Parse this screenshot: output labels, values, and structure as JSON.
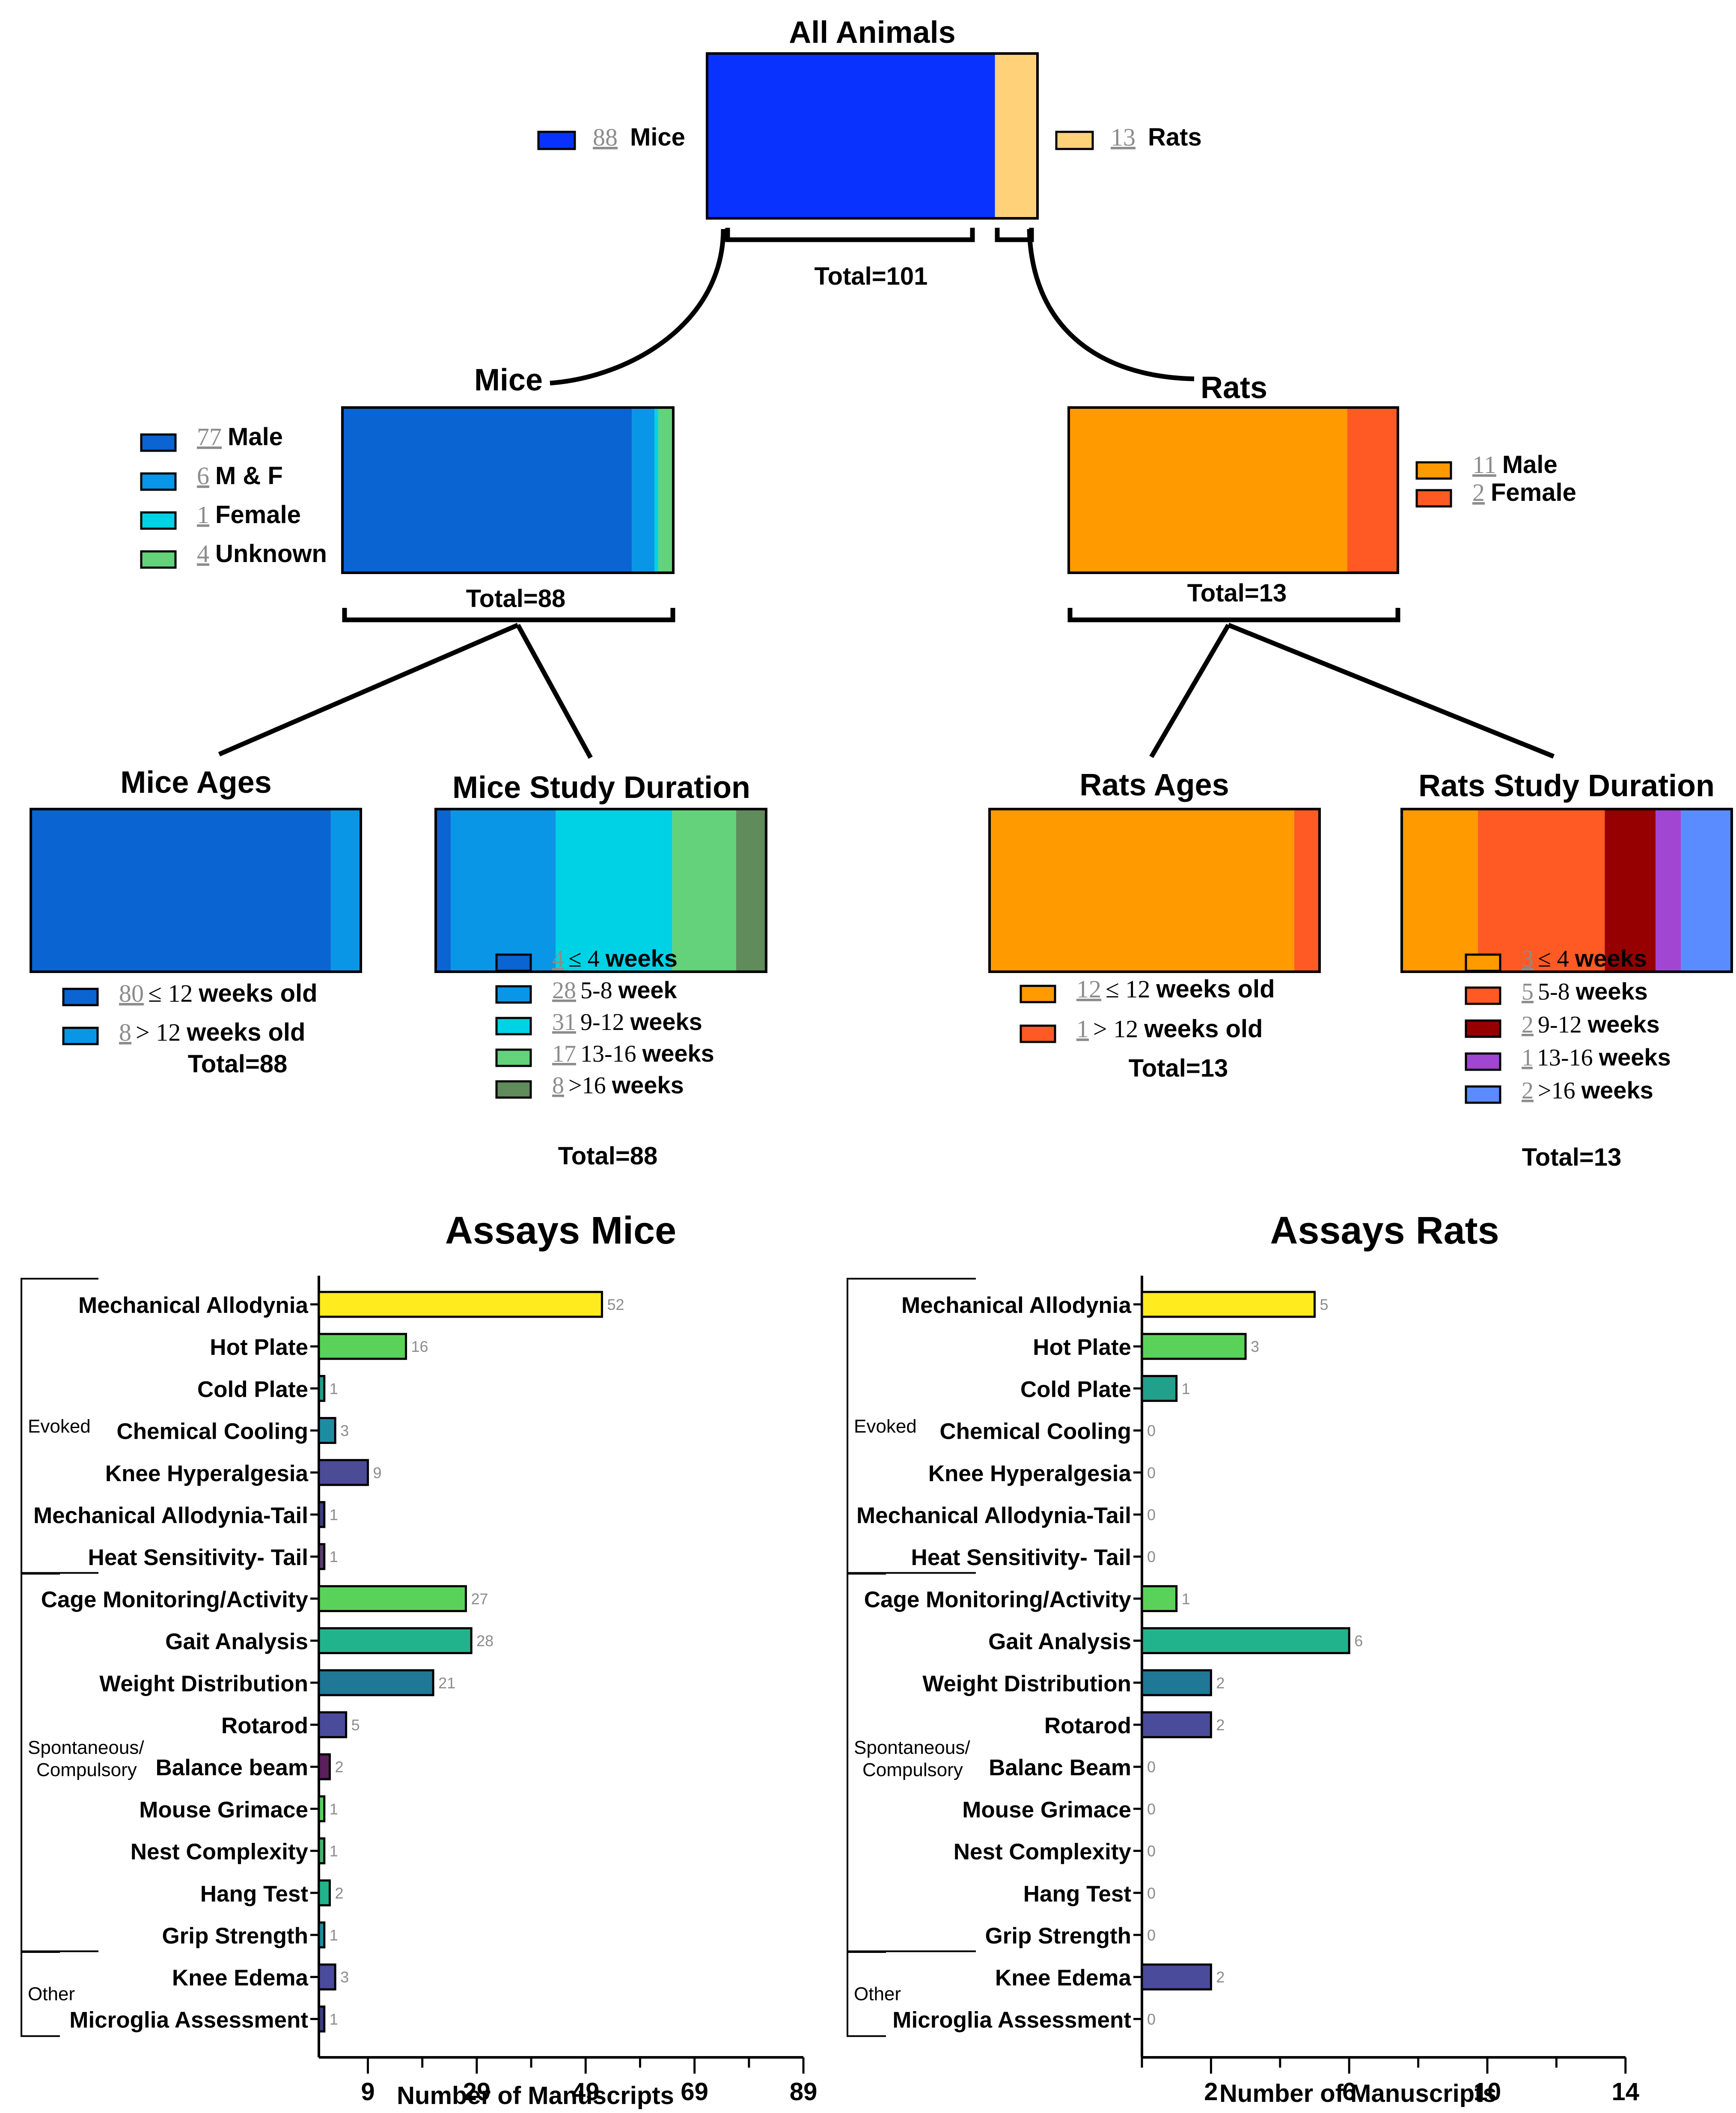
{
  "chart_data": {
    "stacks": [
      {
        "id": "all",
        "title": "All Animals",
        "total_label": "Total=101",
        "segments": [
          {
            "value": 88,
            "label": "Mice",
            "color": "#0a32ff"
          },
          {
            "value": 13,
            "label": "Rats",
            "color": "#ffd27a"
          }
        ]
      },
      {
        "id": "mice_sex",
        "title": "Mice",
        "total_label": "Total=88",
        "segments": [
          {
            "value": 77,
            "label": "Male",
            "color": "#0a64d2"
          },
          {
            "value": 6,
            "label": "M & F",
            "color": "#0a96e6"
          },
          {
            "value": 1,
            "label": "Female",
            "color": "#00d2e6"
          },
          {
            "value": 4,
            "label": "Unknown",
            "color": "#64d27a"
          }
        ]
      },
      {
        "id": "rats_sex",
        "title": "Rats",
        "total_label": "Total=13",
        "segments": [
          {
            "value": 11,
            "label": "Male",
            "color": "#ff9a00"
          },
          {
            "value": 2,
            "label": "Female",
            "color": "#ff5a23"
          }
        ]
      },
      {
        "id": "mice_ages",
        "title": "Mice Ages",
        "total_label": "Total=88",
        "segments": [
          {
            "value": 80,
            "prefix": "≤ 12",
            "label": "weeks old",
            "color": "#0a64d2"
          },
          {
            "value": 8,
            "prefix": "> 12",
            "label": "weeks old",
            "color": "#0a96e6"
          }
        ]
      },
      {
        "id": "mice_duration",
        "title": "Mice Study Duration",
        "total_label": "Total=88",
        "segments": [
          {
            "value": 4,
            "prefix": "≤ 4",
            "label": "weeks",
            "color": "#0a64d2"
          },
          {
            "value": 28,
            "prefix": "5-8",
            "label": "week",
            "color": "#0a96e6"
          },
          {
            "value": 31,
            "prefix": "9-12",
            "label": "weeks",
            "color": "#00d2e6"
          },
          {
            "value": 17,
            "prefix": "13-16",
            "label": "weeks",
            "color": "#64d27a"
          },
          {
            "value": 8,
            "prefix": ">16",
            "label": "weeks",
            "color": "#5f8c5a"
          }
        ]
      },
      {
        "id": "rats_ages",
        "title": "Rats Ages",
        "total_label": "Total=13",
        "segments": [
          {
            "value": 12,
            "prefix": "≤ 12",
            "label": "weeks old",
            "color": "#ff9a00"
          },
          {
            "value": 1,
            "prefix": "> 12",
            "label": "weeks old",
            "color": "#ff5a23"
          }
        ]
      },
      {
        "id": "rats_duration",
        "title": "Rats Study Duration",
        "total_label": "Total=13",
        "segments": [
          {
            "value": 3,
            "prefix": "≤ 4",
            "label": "weeks",
            "color": "#ff9a00"
          },
          {
            "value": 5,
            "prefix": "5-8",
            "label": "weeks",
            "color": "#ff5a23"
          },
          {
            "value": 2,
            "prefix": "9-12",
            "label": "weeks",
            "color": "#960000"
          },
          {
            "value": 1,
            "prefix": "13-16",
            "label": "weeks",
            "color": "#a046d2"
          },
          {
            "value": 2,
            "prefix": ">16",
            "label": "weeks",
            "color": "#5a8cff"
          }
        ]
      }
    ],
    "bars": [
      {
        "id": "assays_mice",
        "type": "bar",
        "orientation": "horizontal",
        "title": "Assays Mice",
        "xlabel": "Number of Manuscripts",
        "xlim": [
          0,
          89
        ],
        "xticks": [
          9,
          29,
          49,
          69,
          89
        ],
        "categories": [
          "Mechanical Allodynia",
          "Hot Plate",
          "Cold Plate",
          "Chemical Cooling",
          "Knee Hyperalgesia",
          "Mechanical Allodynia-Tail",
          "Heat Sensitivity- Tail",
          "Cage Monitoring/Activity",
          "Gait Analysis",
          "Weight Distribution",
          "Rotarod",
          "Balance beam",
          "Mouse Grimace",
          "Nest Complexity",
          "Hang Test",
          "Grip Strength",
          "Knee Edema",
          "Microglia Assessment"
        ],
        "values": [
          52,
          16,
          1,
          3,
          9,
          1,
          1,
          27,
          28,
          21,
          5,
          2,
          1,
          1,
          2,
          1,
          3,
          1
        ],
        "colors": [
          "#ffeb1e",
          "#5ad25a",
          "#21a08c",
          "#1e8ca0",
          "#4b4b96",
          "#3c3c82",
          "#5a3c6e",
          "#5ad25a",
          "#21b48c",
          "#1e7896",
          "#4b4b9b",
          "#5a1e5a",
          "#5ad25a",
          "#46b46e",
          "#21b48c",
          "#1e8ca0",
          "#4b4b9b",
          "#3c3c82"
        ],
        "groups": [
          {
            "label": "Evoked",
            "from": 0,
            "to": 6
          },
          {
            "label": "Spontaneous/ Compulsory",
            "lines": [
              "Spontaneous/",
              "Compulsory"
            ],
            "from": 7,
            "to": 15
          },
          {
            "label": "Other",
            "from": 16,
            "to": 17
          }
        ]
      },
      {
        "id": "assays_rats",
        "type": "bar",
        "orientation": "horizontal",
        "title": "Assays Rats",
        "xlabel": "Number of Manuscripts",
        "xlim": [
          0,
          14
        ],
        "xticks": [
          2,
          6,
          10,
          14
        ],
        "categories": [
          "Mechanical Allodynia",
          "Hot Plate",
          "Cold Plate",
          "Chemical Cooling",
          "Knee Hyperalgesia",
          "Mechanical Allodynia-Tail",
          "Heat Sensitivity- Tail",
          "Cage Monitoring/Activity",
          "Gait Analysis",
          "Weight Distribution",
          "Rotarod",
          "Balanc Beam",
          "Mouse Grimace",
          "Nest Complexity",
          "Hang Test",
          "Grip Strength",
          "Knee Edema",
          "Microglia Assessment"
        ],
        "values": [
          5,
          3,
          1,
          0,
          0,
          0,
          0,
          1,
          6,
          2,
          2,
          0,
          0,
          0,
          0,
          0,
          2,
          0
        ],
        "colors": [
          "#ffeb1e",
          "#5ad25a",
          "#21a08c",
          "#1e8ca0",
          "#4b4b96",
          "#3c3c82",
          "#5a3c6e",
          "#5ad25a",
          "#21b48c",
          "#1e7896",
          "#4b4b9b",
          "#5a1e5a",
          "#5ad25a",
          "#46b46e",
          "#21b48c",
          "#1e8ca0",
          "#4b4b9b",
          "#3c3c82"
        ],
        "groups": [
          {
            "label": "Evoked",
            "from": 0,
            "to": 6
          },
          {
            "label": "Spontaneous/ Compulsory",
            "lines": [
              "Spontaneous/",
              "Compulsory"
            ],
            "from": 7,
            "to": 15
          },
          {
            "label": "Other",
            "from": 16,
            "to": 17
          }
        ]
      }
    ]
  }
}
